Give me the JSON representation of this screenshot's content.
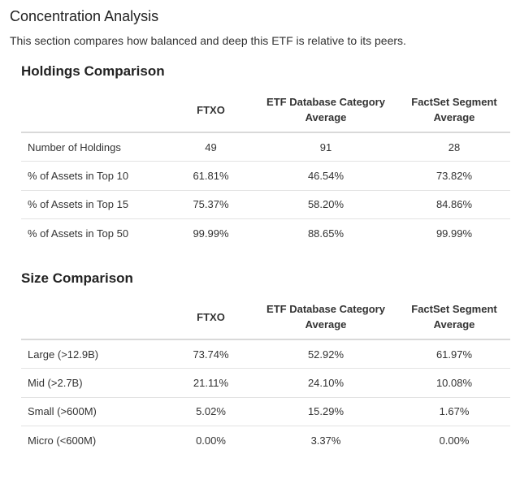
{
  "section": {
    "title": "Concentration Analysis",
    "description": "This section compares how balanced and deep this ETF is relative to its peers."
  },
  "holdings": {
    "title": "Holdings Comparison",
    "columns": [
      "FTXO",
      "ETF Database Category Average",
      "FactSet Segment Average"
    ],
    "rows": [
      {
        "label": "Number of Holdings",
        "values": [
          "49",
          "91",
          "28"
        ]
      },
      {
        "label": "% of Assets in Top 10",
        "values": [
          "61.81%",
          "46.54%",
          "73.82%"
        ]
      },
      {
        "label": "% of Assets in Top 15",
        "values": [
          "75.37%",
          "58.20%",
          "84.86%"
        ]
      },
      {
        "label": "% of Assets in Top 50",
        "values": [
          "99.99%",
          "88.65%",
          "99.99%"
        ]
      }
    ]
  },
  "size": {
    "title": "Size Comparison",
    "columns": [
      "FTXO",
      "ETF Database Category Average",
      "FactSet Segment Average"
    ],
    "rows": [
      {
        "label": "Large (>12.9B)",
        "values": [
          "73.74%",
          "52.92%",
          "61.97%"
        ]
      },
      {
        "label": "Mid (>2.7B)",
        "values": [
          "21.11%",
          "24.10%",
          "10.08%"
        ]
      },
      {
        "label": "Small (>600M)",
        "values": [
          "5.02%",
          "15.29%",
          "1.67%"
        ]
      },
      {
        "label": "Micro (<600M)",
        "values": [
          "0.00%",
          "3.37%",
          "0.00%"
        ]
      }
    ]
  }
}
